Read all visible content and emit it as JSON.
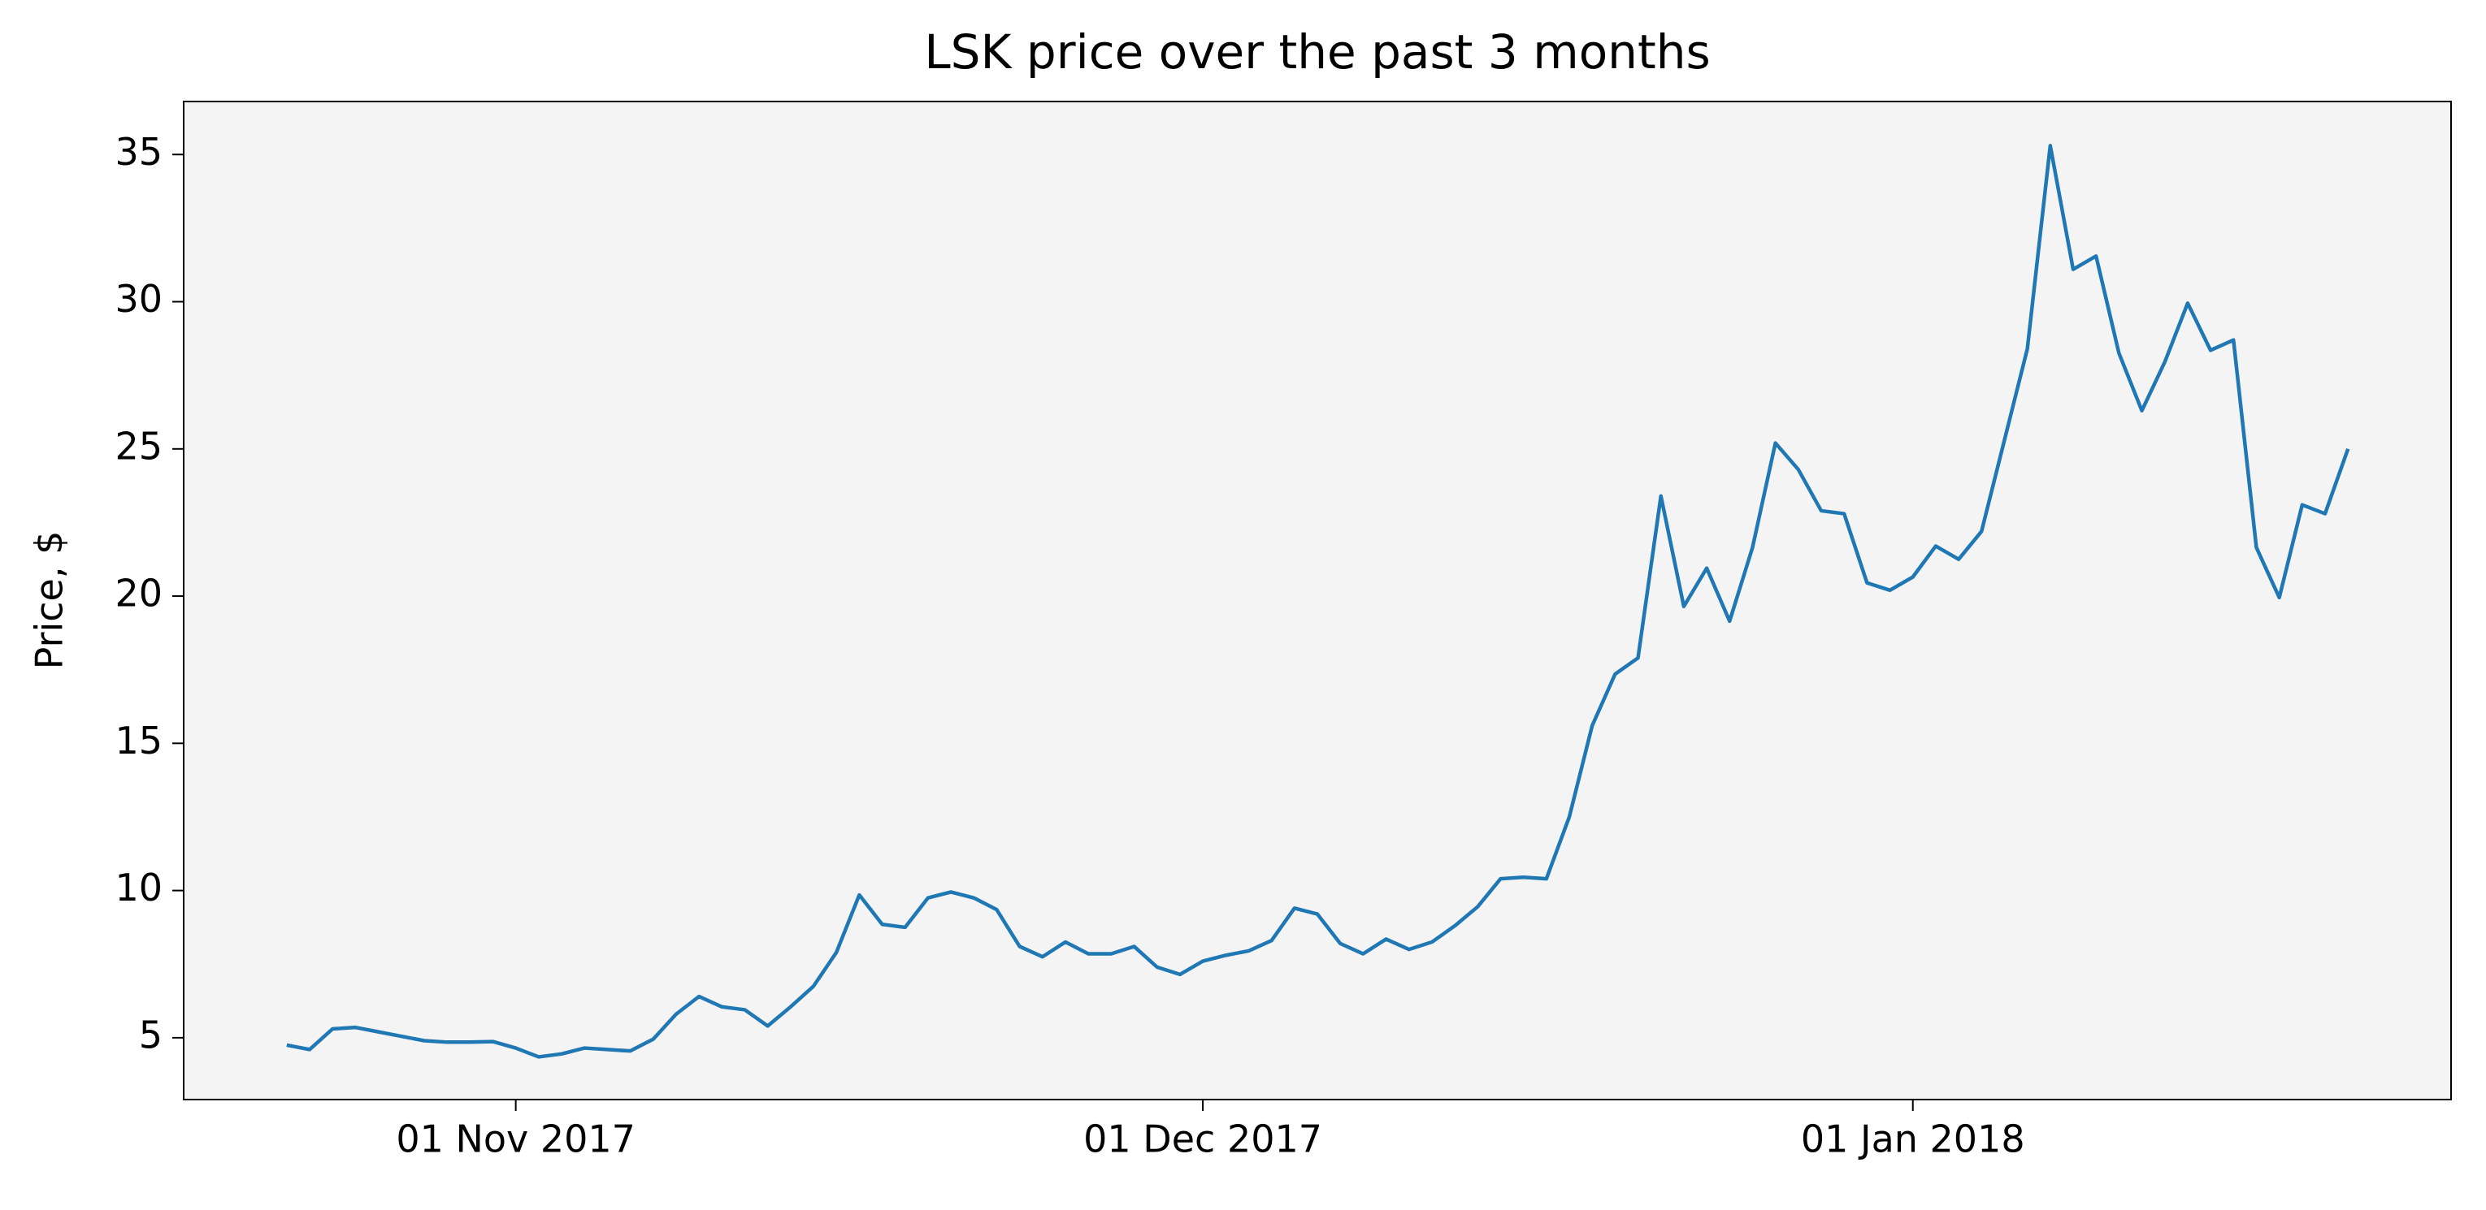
{
  "chart_data": {
    "type": "line",
    "title": "LSK price over the past 3 months",
    "ylabel": "Price, $",
    "color": "#1f77b4",
    "x": [
      "2017-10-22",
      "2017-10-23",
      "2017-10-24",
      "2017-10-25",
      "2017-10-26",
      "2017-10-27",
      "2017-10-28",
      "2017-10-29",
      "2017-10-30",
      "2017-10-31",
      "2017-11-01",
      "2017-11-02",
      "2017-11-03",
      "2017-11-04",
      "2017-11-05",
      "2017-11-06",
      "2017-11-07",
      "2017-11-08",
      "2017-11-09",
      "2017-11-10",
      "2017-11-11",
      "2017-11-12",
      "2017-11-13",
      "2017-11-14",
      "2017-11-15",
      "2017-11-16",
      "2017-11-17",
      "2017-11-18",
      "2017-11-19",
      "2017-11-20",
      "2017-11-21",
      "2017-11-22",
      "2017-11-23",
      "2017-11-24",
      "2017-11-25",
      "2017-11-26",
      "2017-11-27",
      "2017-11-28",
      "2017-11-29",
      "2017-11-30",
      "2017-12-01",
      "2017-12-02",
      "2017-12-03",
      "2017-12-04",
      "2017-12-05",
      "2017-12-06",
      "2017-12-07",
      "2017-12-08",
      "2017-12-09",
      "2017-12-10",
      "2017-12-11",
      "2017-12-12",
      "2017-12-13",
      "2017-12-14",
      "2017-12-15",
      "2017-12-16",
      "2017-12-17",
      "2017-12-18",
      "2017-12-19",
      "2017-12-20",
      "2017-12-21",
      "2017-12-22",
      "2017-12-23",
      "2017-12-24",
      "2017-12-25",
      "2017-12-26",
      "2017-12-27",
      "2017-12-28",
      "2017-12-29",
      "2017-12-30",
      "2017-12-31",
      "2018-01-01",
      "2018-01-02",
      "2018-01-03",
      "2018-01-04",
      "2018-01-05",
      "2018-01-06",
      "2018-01-07",
      "2018-01-08",
      "2018-01-09",
      "2018-01-10",
      "2018-01-11",
      "2018-01-12",
      "2018-01-13",
      "2018-01-14",
      "2018-01-15",
      "2018-01-16",
      "2018-01-17",
      "2018-01-18",
      "2018-01-19",
      "2018-01-20"
    ],
    "values": [
      4.75,
      4.6,
      5.3,
      5.35,
      5.2,
      5.05,
      4.9,
      4.85,
      4.85,
      4.87,
      4.65,
      4.35,
      4.45,
      4.65,
      4.6,
      4.55,
      4.95,
      5.8,
      6.4,
      6.05,
      5.95,
      5.4,
      6.05,
      6.75,
      7.9,
      9.85,
      8.85,
      8.75,
      9.75,
      9.95,
      9.75,
      9.35,
      8.1,
      7.75,
      8.25,
      7.85,
      7.85,
      8.1,
      7.4,
      7.15,
      7.6,
      7.8,
      7.95,
      8.3,
      9.4,
      9.2,
      8.2,
      7.85,
      8.35,
      8.0,
      8.25,
      8.8,
      9.45,
      10.4,
      10.45,
      10.4,
      12.5,
      15.6,
      17.35,
      17.9,
      23.4,
      19.65,
      20.95,
      19.15,
      21.65,
      25.2,
      24.3,
      22.9,
      22.8,
      20.45,
      20.2,
      20.65,
      21.7,
      21.25,
      22.2,
      25.3,
      28.4,
      35.3,
      31.1,
      31.55,
      28.25,
      26.3,
      27.95,
      29.95,
      28.35,
      28.7,
      21.65,
      19.95,
      23.1,
      22.8,
      25.0
    ],
    "xlim": [
      "2017-10-17T12:00:00Z",
      "2018-01-24T12:00:00Z"
    ],
    "xticks": [
      {
        "value": "2017-11-01",
        "label": "01 Nov 2017"
      },
      {
        "value": "2017-12-01",
        "label": "01 Dec 2017"
      },
      {
        "value": "2018-01-01",
        "label": "01 Jan 2018"
      }
    ],
    "ylim": [
      2.9,
      36.8
    ],
    "yticks": [
      5,
      10,
      15,
      20,
      25,
      30,
      35
    ],
    "background": "#f4f4f4"
  }
}
